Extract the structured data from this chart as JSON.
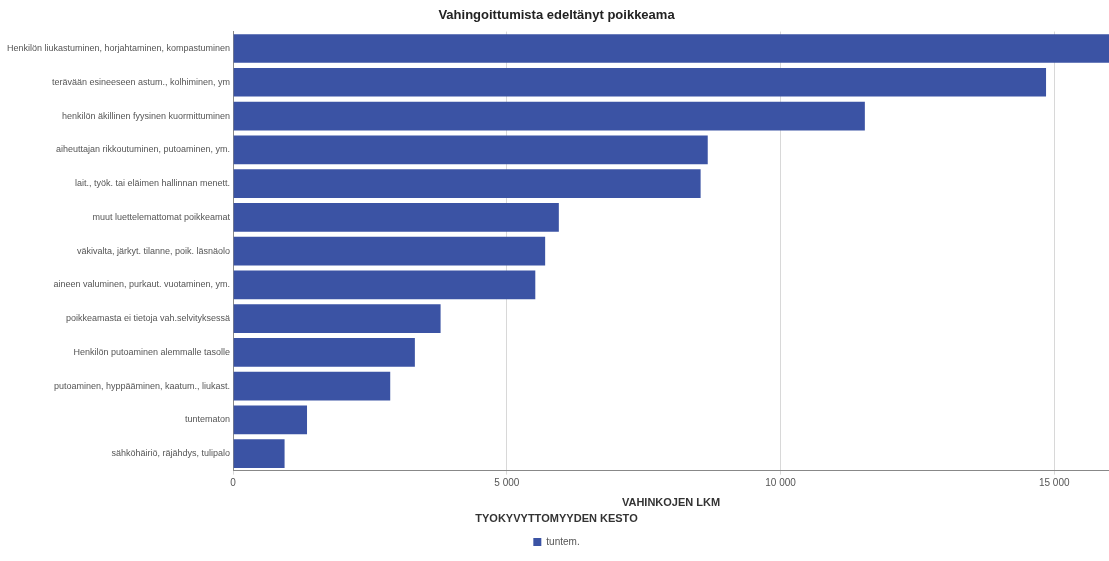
{
  "chart_data": {
    "type": "bar",
    "orientation": "horizontal",
    "title": "Vahingoittumista edeltänyt poikkeama",
    "xlabel": "VAHINKOJEN LKM",
    "legend_title": "TYÖKYVYTTÖMYYDEN KESTO",
    "legend": "bottom",
    "grid": "x",
    "categories": [
      "Henkilön liukastuminen, horjahtaminen, kompastuminen",
      "terävään esineeseen astum., kolhiminen, ym",
      "henkilön äkillinen fyysinen kuormittuminen",
      "aiheuttajan rikkoutuminen, putoaminen, ym.",
      "lait., työk. tai eläimen hallinnan menett.",
      "muut luettelemattomat poikkeamat",
      "väkivalta, järkyt. tilanne, poik. läsnäolo",
      "aineen valuminen, purkaut. vuotaminen, ym.",
      "poikkeamasta ei tietoja vah.selvityksessä",
      "Henkilön putoaminen alemmalle tasolle",
      "putoaminen, hyppääminen, kaatum., liukast.",
      "tuntematon",
      "sähköhäiriö, räjähdys, tulipalo"
    ],
    "series": [
      {
        "name": "tuntem.",
        "color": "#3b53a4",
        "values": [
          16000,
          14850,
          11540,
          8670,
          8540,
          5950,
          5700,
          5520,
          3790,
          3320,
          2870,
          1350,
          940
        ]
      }
    ],
    "xlim": [
      0,
      16000
    ],
    "xticks": [
      0,
      {
        "value": 5000,
        "label": "5 000"
      },
      {
        "value": 10000,
        "label": "10 000"
      },
      {
        "value": 15000,
        "label": "15 000"
      }
    ]
  }
}
